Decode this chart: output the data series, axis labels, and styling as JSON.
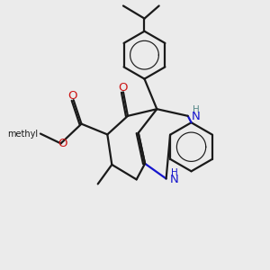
{
  "bg_color": "#ebebeb",
  "bond_color": "#1a1a1a",
  "nitrogen_color": "#1515cc",
  "oxygen_color": "#cc1515",
  "nh_upper_color": "#558888",
  "line_width": 1.6,
  "fig_width": 3.0,
  "fig_height": 3.0,
  "dpi": 100,
  "xlim": [
    0,
    10
  ],
  "ylim": [
    0,
    10
  ]
}
